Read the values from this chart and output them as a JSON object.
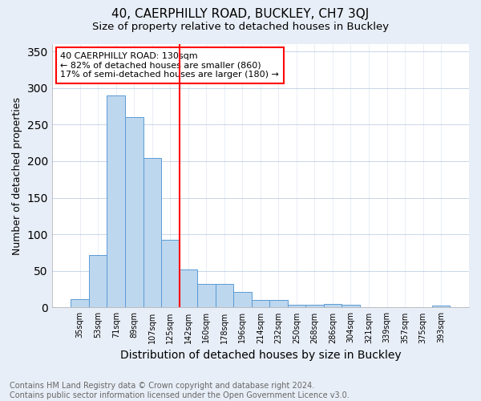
{
  "title": "40, CAERPHILLY ROAD, BUCKLEY, CH7 3QJ",
  "subtitle": "Size of property relative to detached houses in Buckley",
  "xlabel": "Distribution of detached houses by size in Buckley",
  "ylabel": "Number of detached properties",
  "categories": [
    "35sqm",
    "53sqm",
    "71sqm",
    "89sqm",
    "107sqm",
    "125sqm",
    "142sqm",
    "160sqm",
    "178sqm",
    "196sqm",
    "214sqm",
    "232sqm",
    "250sqm",
    "268sqm",
    "286sqm",
    "304sqm",
    "321sqm",
    "339sqm",
    "357sqm",
    "375sqm",
    "393sqm"
  ],
  "values": [
    11,
    72,
    290,
    260,
    204,
    93,
    52,
    32,
    32,
    21,
    10,
    10,
    4,
    4,
    5,
    4,
    0,
    0,
    0,
    0,
    3
  ],
  "bar_color": "#BDD7EE",
  "bar_edgecolor": "#5B9BD5",
  "redline_index": 5.5,
  "annotation_text": "40 CAERPHILLY ROAD: 130sqm\n← 82% of detached houses are smaller (860)\n17% of semi-detached houses are larger (180) →",
  "annotation_box_color": "white",
  "annotation_box_edgecolor": "red",
  "redline_color": "red",
  "ylim": [
    0,
    360
  ],
  "yticks": [
    0,
    50,
    100,
    150,
    200,
    250,
    300,
    350
  ],
  "footnote": "Contains HM Land Registry data © Crown copyright and database right 2024.\nContains public sector information licensed under the Open Government Licence v3.0.",
  "background_color": "#e8eef7",
  "plot_background_color": "white",
  "title_fontsize": 11,
  "subtitle_fontsize": 9.5,
  "xlabel_fontsize": 10,
  "ylabel_fontsize": 9,
  "tick_fontsize": 7,
  "annotation_fontsize": 8,
  "footnote_fontsize": 7
}
